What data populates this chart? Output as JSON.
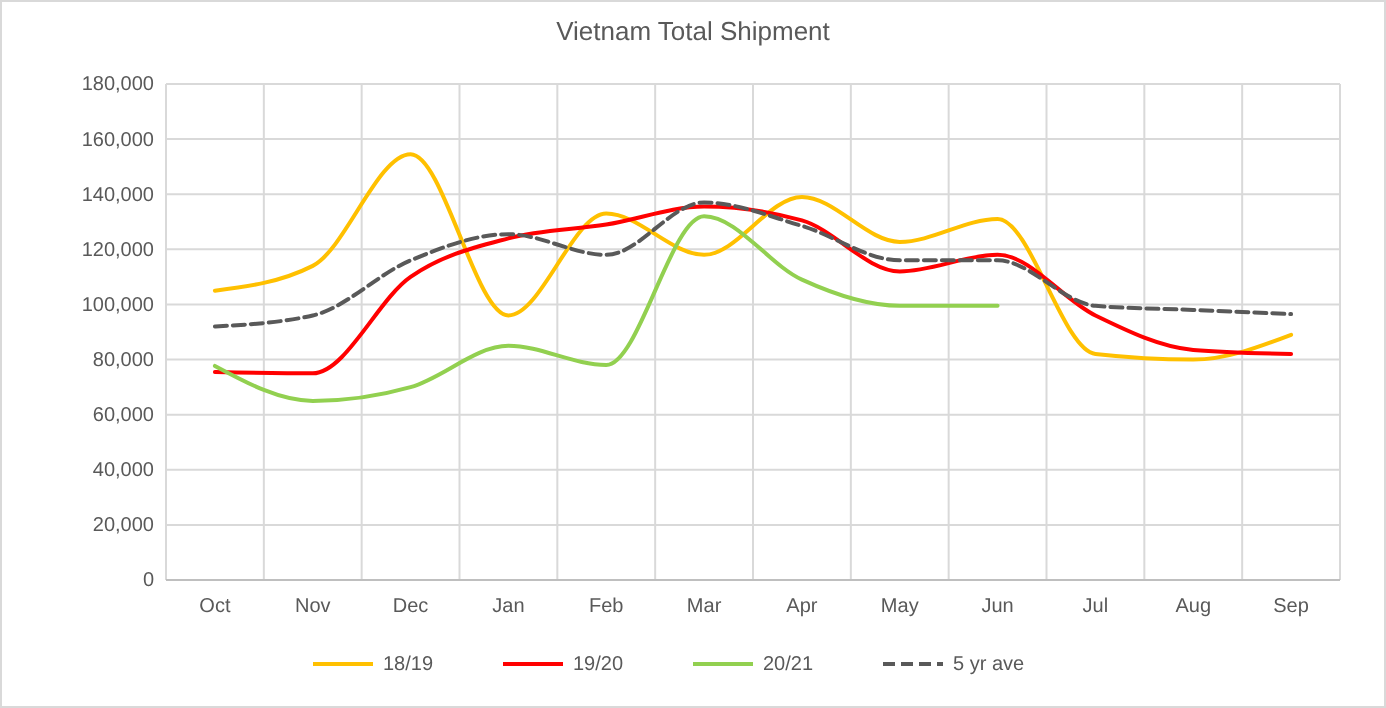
{
  "chart_data": {
    "type": "line",
    "title": "Vietnam Total Shipment",
    "categories": [
      "Oct",
      "Nov",
      "Dec",
      "Jan",
      "Feb",
      "Mar",
      "Apr",
      "May",
      "Jun",
      "Jul",
      "Aug",
      "Sep"
    ],
    "series": [
      {
        "name": "18/19",
        "color": "#ffc000",
        "values": [
          105000,
          114000,
          154500,
          96000,
          133000,
          118000,
          139000,
          122700,
          131000,
          82000,
          80000,
          89000
        ]
      },
      {
        "name": "19/20",
        "color": "#ff0000",
        "values": [
          75500,
          75000,
          110000,
          124000,
          129000,
          135500,
          130500,
          112000,
          118000,
          96000,
          83500,
          82000
        ]
      },
      {
        "name": "20/21",
        "color": "#92d050",
        "values": [
          77700,
          65000,
          70000,
          85000,
          78000,
          132000,
          109000,
          99500,
          99500,
          null,
          null,
          null
        ]
      },
      {
        "name": "5 yr ave",
        "color": "#595959",
        "line_style": "dashed",
        "values": [
          92000,
          96000,
          116000,
          125500,
          118000,
          137000,
          128500,
          116000,
          116000,
          99500,
          98000,
          96500
        ]
      }
    ],
    "ylim": [
      0,
      180000
    ],
    "yticks": [
      {
        "value": 0,
        "label": "0"
      },
      {
        "value": 20000,
        "label": "20,000"
      },
      {
        "value": 40000,
        "label": "40,000"
      },
      {
        "value": 60000,
        "label": "60,000"
      },
      {
        "value": 80000,
        "label": "80,000"
      },
      {
        "value": 100000,
        "label": "100,000"
      },
      {
        "value": 120000,
        "label": "120,000"
      },
      {
        "value": 140000,
        "label": "140,000"
      },
      {
        "value": 160000,
        "label": "160,000"
      },
      {
        "value": 180000,
        "label": "180,000"
      }
    ],
    "grid": true,
    "legend": "bottom",
    "marker": "none"
  }
}
